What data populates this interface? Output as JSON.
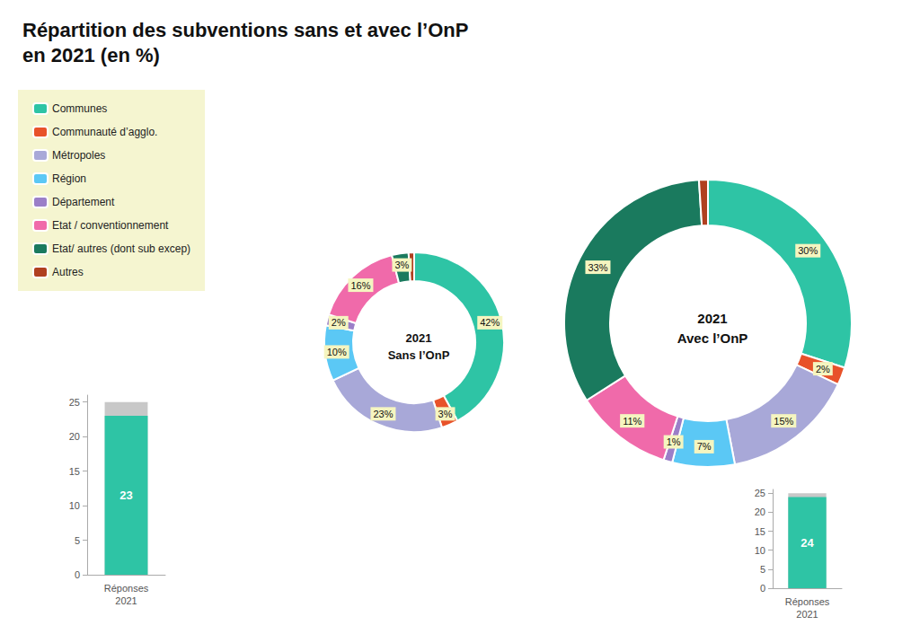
{
  "chart_data": [
    {
      "type": "pie",
      "title": "Répartition des subventions sans et avec l’OnP\nen 2021 (en %)",
      "annotations": [
        "2021\nSans l’OnP"
      ],
      "categories": [
        "Communes",
        "Communauté d’agglo.",
        "Métropoles",
        "Région",
        "Département",
        "Etat / conventionnement",
        "Etat/ autres (dont sub excep)",
        "Autres"
      ],
      "values": [
        42,
        3,
        23,
        10,
        2,
        16,
        3,
        1
      ],
      "value_labels": [
        "42%",
        "3%",
        "23%",
        "10%",
        "2%",
        "16%",
        "3%",
        null
      ],
      "colors": [
        "#2ec4a5",
        "#e8522a",
        "#a8a8d8",
        "#5bc8f5",
        "#9b7fc8",
        "#f06aaa",
        "#1a7a5e",
        "#b04020"
      ],
      "data_labels": true,
      "legend": "upper left"
    },
    {
      "type": "pie",
      "annotations": [
        "2021\nAvec l’OnP"
      ],
      "categories": [
        "Communes",
        "Communauté d’agglo.",
        "Métropoles",
        "Région",
        "Département",
        "Etat / conventionnement",
        "Etat/ autres (dont sub excep)",
        "Autres"
      ],
      "values": [
        30,
        2,
        15,
        7,
        1,
        11,
        33,
        1
      ],
      "value_labels": [
        "30%",
        "2%",
        "15%",
        "7%",
        "1%",
        "11%",
        "33%",
        null
      ],
      "colors": [
        "#2ec4a5",
        "#e8522a",
        "#a8a8d8",
        "#5bc8f5",
        "#9b7fc8",
        "#f06aaa",
        "#1a7a5e",
        "#b04020"
      ],
      "data_labels": true
    },
    {
      "type": "bar",
      "categories": [
        "Réponses\n2021"
      ],
      "series": [
        {
          "values": [
            25
          ],
          "color": "#c8c8c8"
        },
        {
          "values": [
            23
          ],
          "color": "#2ec4a5",
          "data_labels": true
        }
      ],
      "ylim": [
        0,
        26
      ],
      "yticks": [
        0,
        5,
        10,
        15,
        20,
        25
      ],
      "grid": false
    },
    {
      "type": "bar",
      "categories": [
        "Réponses\n2021"
      ],
      "series": [
        {
          "values": [
            25
          ],
          "color": "#c8c8c8"
        },
        {
          "values": [
            24
          ],
          "color": "#2ec4a5",
          "data_labels": true
        }
      ],
      "ylim": [
        0,
        26
      ],
      "yticks": [
        0,
        5,
        10,
        15,
        20,
        25
      ],
      "grid": false
    }
  ]
}
